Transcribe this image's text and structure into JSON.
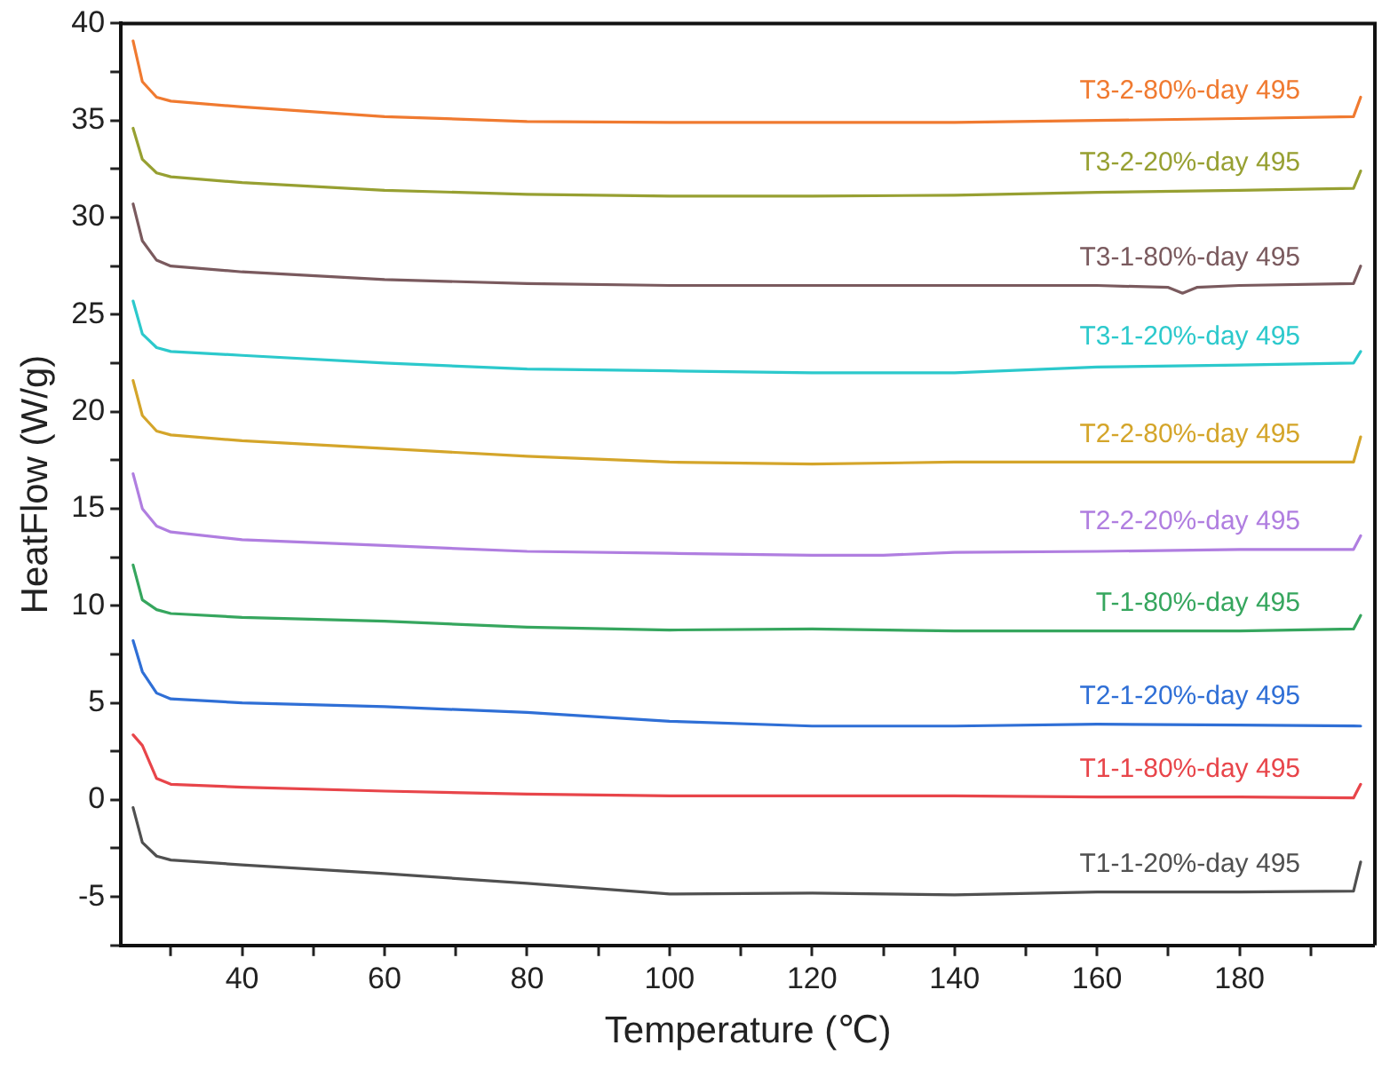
{
  "chart_data": {
    "type": "line",
    "xlabel": "Temperature (℃)",
    "ylabel": "HeatFlow (W/g)",
    "xlim": [
      23,
      199
    ],
    "ylim": [
      -7.5,
      40
    ],
    "xticks": [
      {
        "value": 30,
        "label": null
      },
      40,
      {
        "value": 50,
        "label": null
      },
      60,
      {
        "value": 70,
        "label": null
      },
      80,
      {
        "value": 90,
        "label": null
      },
      100,
      {
        "value": 110,
        "label": null
      },
      120,
      {
        "value": 130,
        "label": null
      },
      140,
      {
        "value": 150,
        "label": null
      },
      160,
      {
        "value": 170,
        "label": null
      },
      180,
      {
        "value": 190,
        "label": null
      }
    ],
    "yticks": [
      {
        "value": -7.5,
        "label": null
      },
      -5,
      {
        "value": -2.5,
        "label": null
      },
      0,
      {
        "value": 2.5,
        "label": null
      },
      5,
      {
        "value": 7.5,
        "label": null
      },
      10,
      {
        "value": 12.5,
        "label": null
      },
      15,
      {
        "value": 17.5,
        "label": null
      },
      20,
      {
        "value": 22.5,
        "label": null
      },
      25,
      {
        "value": 27.5,
        "label": null
      },
      30,
      {
        "value": 32.5,
        "label": null
      },
      35,
      {
        "value": 37.5,
        "label": null
      },
      40
    ],
    "grid": false,
    "legend": false,
    "marker": "none",
    "line_style": "solid",
    "series": [
      {
        "name": "T1-1-20%-day 495",
        "color": "#505050",
        "x": [
          24.7,
          26,
          28,
          30,
          40,
          60,
          80,
          100,
          120,
          140,
          160,
          180,
          196,
          197
        ],
        "values": [
          -0.4,
          -2.2,
          -2.9,
          -3.1,
          -3.35,
          -3.8,
          -4.3,
          -4.85,
          -4.8,
          -4.9,
          -4.75,
          -4.75,
          -4.7,
          -3.2
        ]
      },
      {
        "name": "T1-1-80%-day 495",
        "color": "#e8454a",
        "x": [
          24.7,
          26,
          28,
          30,
          40,
          60,
          80,
          100,
          120,
          140,
          160,
          180,
          196,
          197
        ],
        "values": [
          3.35,
          2.8,
          1.1,
          0.8,
          0.65,
          0.45,
          0.3,
          0.2,
          0.2,
          0.2,
          0.15,
          0.15,
          0.1,
          0.8
        ]
      },
      {
        "name": "T2-1-20%-day 495",
        "color": "#2f6fd6",
        "x": [
          24.7,
          26,
          28,
          30,
          40,
          60,
          80,
          100,
          120,
          140,
          160,
          180,
          197
        ],
        "values": [
          8.2,
          6.6,
          5.5,
          5.2,
          5.0,
          4.8,
          4.5,
          4.05,
          3.8,
          3.8,
          3.9,
          3.85,
          3.8
        ]
      },
      {
        "name": "T-1-80%-day 495",
        "color": "#36a65e",
        "x": [
          24.7,
          26,
          28,
          30,
          40,
          60,
          80,
          100,
          120,
          140,
          160,
          180,
          196,
          197
        ],
        "values": [
          12.1,
          10.3,
          9.8,
          9.6,
          9.4,
          9.2,
          8.9,
          8.75,
          8.8,
          8.7,
          8.7,
          8.7,
          8.8,
          9.5
        ]
      },
      {
        "name": "T2-2-20%-day 495",
        "color": "#b07ee0",
        "x": [
          24.7,
          26,
          28,
          30,
          40,
          60,
          80,
          100,
          120,
          130,
          140,
          160,
          180,
          196,
          197
        ],
        "values": [
          16.8,
          15.0,
          14.1,
          13.8,
          13.4,
          13.1,
          12.8,
          12.7,
          12.6,
          12.6,
          12.75,
          12.8,
          12.9,
          12.9,
          13.6
        ]
      },
      {
        "name": "T2-2-80%-day 495",
        "color": "#d4a52a",
        "x": [
          24.7,
          26,
          28,
          30,
          40,
          60,
          80,
          100,
          120,
          140,
          160,
          180,
          196,
          197
        ],
        "values": [
          21.6,
          19.8,
          19.0,
          18.8,
          18.5,
          18.1,
          17.7,
          17.4,
          17.3,
          17.4,
          17.4,
          17.4,
          17.4,
          18.7
        ]
      },
      {
        "name": "T3-1-20%-day 495",
        "color": "#2cc9cc",
        "x": [
          24.7,
          26,
          28,
          30,
          40,
          60,
          80,
          100,
          120,
          140,
          160,
          180,
          196,
          197
        ],
        "values": [
          25.7,
          24.0,
          23.3,
          23.1,
          22.9,
          22.5,
          22.2,
          22.1,
          22.0,
          22.0,
          22.3,
          22.4,
          22.5,
          23.1
        ]
      },
      {
        "name": "T3-1-80%-day 495",
        "color": "#7a5a5e",
        "x": [
          24.7,
          26,
          28,
          30,
          40,
          60,
          80,
          100,
          120,
          140,
          160,
          170,
          172,
          174,
          180,
          196,
          197
        ],
        "values": [
          30.7,
          28.8,
          27.8,
          27.5,
          27.2,
          26.8,
          26.6,
          26.5,
          26.5,
          26.5,
          26.5,
          26.4,
          26.1,
          26.4,
          26.5,
          26.6,
          27.5
        ]
      },
      {
        "name": "T3-2-20%-day 495",
        "color": "#97a032",
        "x": [
          24.7,
          26,
          28,
          30,
          40,
          60,
          80,
          100,
          120,
          140,
          160,
          180,
          196,
          197
        ],
        "values": [
          34.6,
          33.0,
          32.3,
          32.1,
          31.8,
          31.4,
          31.2,
          31.1,
          31.1,
          31.15,
          31.3,
          31.4,
          31.5,
          32.4
        ]
      },
      {
        "name": "T3-2-80%-day 495",
        "color": "#f07a30",
        "x": [
          24.7,
          26,
          28,
          30,
          40,
          60,
          80,
          100,
          120,
          140,
          160,
          180,
          196,
          197
        ],
        "values": [
          39.1,
          37.0,
          36.2,
          36.0,
          35.7,
          35.2,
          34.95,
          34.9,
          34.9,
          34.9,
          35.0,
          35.1,
          35.2,
          36.2
        ]
      }
    ]
  }
}
